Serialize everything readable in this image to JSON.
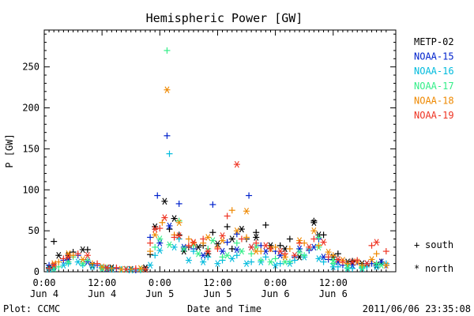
{
  "chart_data": {
    "type": "scatter",
    "title": "Hemispheric Power [GW]",
    "xlabel": "Date and Time",
    "ylabel": "P [GW]",
    "x_unit": "hours since Jun 4 00:00",
    "xlim": [
      0,
      73
    ],
    "ylim": [
      0,
      295
    ],
    "yticks": [
      0,
      50,
      100,
      150,
      200,
      250
    ],
    "xticks": [
      {
        "x": 0,
        "line1": "0:00",
        "line2": "Jun 4"
      },
      {
        "x": 12,
        "line1": "12:00",
        "line2": "Jun 4"
      },
      {
        "x": 24,
        "line1": "0:00",
        "line2": "Jun 5"
      },
      {
        "x": 36,
        "line1": "12:00",
        "line2": "Jun 5"
      },
      {
        "x": 48,
        "line1": "0:00",
        "line2": "Jun 6"
      },
      {
        "x": 60,
        "line1": "12:00",
        "line2": "Jun 6"
      }
    ],
    "grid": false,
    "legend_position": "right",
    "series": [
      {
        "name": "METP-02",
        "color": "#000000",
        "south": [
          [
            2,
            37
          ],
          [
            6,
            24
          ],
          [
            9,
            27
          ],
          [
            22,
            21
          ],
          [
            26,
            52
          ],
          [
            28,
            45
          ],
          [
            30,
            30
          ],
          [
            33,
            32
          ],
          [
            35,
            48
          ],
          [
            38,
            55
          ],
          [
            39,
            28
          ],
          [
            42,
            40
          ],
          [
            44,
            48
          ],
          [
            46,
            57
          ],
          [
            49,
            32
          ],
          [
            51,
            40
          ],
          [
            56,
            62
          ],
          [
            58,
            45
          ],
          [
            61,
            22
          ],
          [
            64,
            13
          ],
          [
            67,
            8
          ],
          [
            70,
            12
          ]
        ],
        "north": [
          [
            1,
            5
          ],
          [
            3,
            20
          ],
          [
            5,
            20
          ],
          [
            8,
            27
          ],
          [
            10,
            8
          ],
          [
            14,
            5
          ],
          [
            18,
            3
          ],
          [
            21,
            5
          ],
          [
            23,
            55
          ],
          [
            25,
            86
          ],
          [
            27,
            65
          ],
          [
            29,
            25
          ],
          [
            32,
            30
          ],
          [
            34,
            22
          ],
          [
            36,
            34
          ],
          [
            39,
            40
          ],
          [
            41,
            52
          ],
          [
            44,
            42
          ],
          [
            47,
            32
          ],
          [
            50,
            28
          ],
          [
            53,
            18
          ],
          [
            56,
            60
          ],
          [
            57,
            45
          ],
          [
            60,
            18
          ],
          [
            63,
            12
          ],
          [
            66,
            10
          ],
          [
            69,
            8
          ]
        ]
      },
      {
        "name": "NOAA-15",
        "color": "#0022cc",
        "south": [
          [
            1,
            8
          ],
          [
            4,
            14
          ],
          [
            7,
            20
          ],
          [
            11,
            8
          ],
          [
            15,
            4
          ],
          [
            19,
            2
          ],
          [
            22,
            42
          ],
          [
            23.5,
            93
          ],
          [
            25.5,
            166
          ],
          [
            28,
            83
          ],
          [
            31,
            28
          ],
          [
            35,
            82
          ],
          [
            38,
            36
          ],
          [
            40,
            46
          ],
          [
            42.5,
            93
          ],
          [
            45,
            32
          ],
          [
            48,
            25
          ],
          [
            52,
            18
          ],
          [
            55,
            26
          ],
          [
            57,
            40
          ],
          [
            59,
            15
          ],
          [
            62,
            8
          ],
          [
            65,
            12
          ],
          [
            68,
            10
          ],
          [
            71,
            8
          ]
        ],
        "north": [
          [
            2,
            6
          ],
          [
            5,
            15
          ],
          [
            9,
            12
          ],
          [
            13,
            4
          ],
          [
            17,
            3
          ],
          [
            21,
            3
          ],
          [
            24,
            35
          ],
          [
            26,
            56
          ],
          [
            29,
            30
          ],
          [
            33,
            20
          ],
          [
            37,
            25
          ],
          [
            40,
            27
          ],
          [
            43,
            30
          ],
          [
            46,
            25
          ],
          [
            49,
            20
          ],
          [
            53,
            28
          ],
          [
            56,
            30
          ],
          [
            58,
            18
          ],
          [
            61,
            12
          ],
          [
            64,
            8
          ],
          [
            67,
            10
          ],
          [
            70,
            12
          ]
        ]
      },
      {
        "name": "NOAA-16",
        "color": "#00bbdd",
        "south": [
          [
            2,
            4
          ],
          [
            5,
            10
          ],
          [
            8,
            8
          ],
          [
            12,
            5
          ],
          [
            16,
            3
          ],
          [
            20,
            2
          ],
          [
            23,
            20
          ],
          [
            26,
            144
          ],
          [
            28,
            40
          ],
          [
            31,
            25
          ],
          [
            34,
            18
          ],
          [
            37,
            14
          ],
          [
            40,
            20
          ],
          [
            43,
            12
          ],
          [
            46,
            18
          ],
          [
            49,
            10
          ],
          [
            52,
            14
          ],
          [
            55,
            28
          ],
          [
            58,
            12
          ],
          [
            61,
            6
          ],
          [
            64,
            4
          ],
          [
            67,
            6
          ],
          [
            71,
            10
          ]
        ],
        "north": [
          [
            1,
            3
          ],
          [
            4,
            8
          ],
          [
            7,
            12
          ],
          [
            10,
            6
          ],
          [
            14,
            3
          ],
          [
            18,
            2
          ],
          [
            22,
            8
          ],
          [
            24,
            26
          ],
          [
            27,
            30
          ],
          [
            30,
            14
          ],
          [
            33,
            12
          ],
          [
            36,
            10
          ],
          [
            39,
            16
          ],
          [
            42,
            10
          ],
          [
            45,
            12
          ],
          [
            48,
            8
          ],
          [
            51,
            10
          ],
          [
            54,
            18
          ],
          [
            57,
            16
          ],
          [
            60,
            6
          ],
          [
            63,
            4
          ],
          [
            66,
            4
          ],
          [
            69,
            6
          ]
        ]
      },
      {
        "name": "NOAA-17",
        "color": "#33ee88",
        "south": [
          [
            3,
            6
          ],
          [
            6,
            18
          ],
          [
            9,
            14
          ],
          [
            13,
            5
          ],
          [
            17,
            3
          ],
          [
            20,
            3
          ],
          [
            23,
            30
          ],
          [
            25.5,
            270
          ],
          [
            28,
            62
          ],
          [
            31,
            32
          ],
          [
            34,
            28
          ],
          [
            37,
            18
          ],
          [
            40,
            35
          ],
          [
            43,
            22
          ],
          [
            45,
            14
          ],
          [
            48,
            16
          ],
          [
            51,
            12
          ],
          [
            54,
            20
          ],
          [
            57,
            42
          ],
          [
            60,
            10
          ],
          [
            63,
            8
          ],
          [
            66,
            6
          ],
          [
            69,
            10
          ]
        ],
        "north": [
          [
            2,
            4
          ],
          [
            5,
            12
          ],
          [
            8,
            10
          ],
          [
            12,
            4
          ],
          [
            16,
            3
          ],
          [
            21,
            3
          ],
          [
            24,
            40
          ],
          [
            26,
            33
          ],
          [
            29,
            28
          ],
          [
            32,
            22
          ],
          [
            35,
            38
          ],
          [
            38,
            20
          ],
          [
            41,
            25
          ],
          [
            44,
            30
          ],
          [
            47,
            12
          ],
          [
            50,
            12
          ],
          [
            53,
            24
          ],
          [
            57,
            30
          ],
          [
            60,
            14
          ],
          [
            63,
            5
          ],
          [
            66,
            5
          ],
          [
            70,
            8
          ]
        ]
      },
      {
        "name": "NOAA-18",
        "color": "#ee8800",
        "south": [
          [
            3,
            12
          ],
          [
            6,
            20
          ],
          [
            10,
            10
          ],
          [
            14,
            4
          ],
          [
            18,
            3
          ],
          [
            22,
            25
          ],
          [
            24.5,
            60
          ],
          [
            27,
            45
          ],
          [
            30,
            40
          ],
          [
            33,
            35
          ],
          [
            36,
            30
          ],
          [
            39,
            75
          ],
          [
            42,
            42
          ],
          [
            45,
            25
          ],
          [
            48,
            30
          ],
          [
            51,
            28
          ],
          [
            54,
            35
          ],
          [
            57,
            32
          ],
          [
            60,
            20
          ],
          [
            63,
            10
          ],
          [
            66,
            8
          ],
          [
            69,
            22
          ]
        ],
        "north": [
          [
            2,
            10
          ],
          [
            5,
            22
          ],
          [
            8,
            15
          ],
          [
            12,
            6
          ],
          [
            16,
            3
          ],
          [
            20,
            4
          ],
          [
            23,
            45
          ],
          [
            25.5,
            222
          ],
          [
            28,
            60
          ],
          [
            31,
            35
          ],
          [
            34,
            42
          ],
          [
            37,
            38
          ],
          [
            40,
            50
          ],
          [
            42,
            74
          ],
          [
            44,
            25
          ],
          [
            47,
            28
          ],
          [
            50,
            18
          ],
          [
            53,
            38
          ],
          [
            56,
            50
          ],
          [
            59,
            24
          ],
          [
            62,
            14
          ],
          [
            65,
            12
          ],
          [
            68,
            15
          ],
          [
            71,
            8
          ]
        ]
      },
      {
        "name": "NOAA-19",
        "color": "#ee3322",
        "south": [
          [
            1,
            4
          ],
          [
            4,
            16
          ],
          [
            7,
            22
          ],
          [
            11,
            10
          ],
          [
            15,
            5
          ],
          [
            19,
            4
          ],
          [
            22,
            35
          ],
          [
            24,
            53
          ],
          [
            27,
            42
          ],
          [
            30,
            32
          ],
          [
            33,
            40
          ],
          [
            36,
            28
          ],
          [
            38,
            68
          ],
          [
            41,
            40
          ],
          [
            44,
            35
          ],
          [
            47,
            28
          ],
          [
            50,
            22
          ],
          [
            53,
            35
          ],
          [
            56,
            40
          ],
          [
            59,
            18
          ],
          [
            62,
            12
          ],
          [
            65,
            14
          ],
          [
            68,
            32
          ],
          [
            71,
            25
          ]
        ],
        "north": [
          [
            2,
            8
          ],
          [
            5,
            18
          ],
          [
            9,
            20
          ],
          [
            13,
            5
          ],
          [
            17,
            3
          ],
          [
            21,
            3
          ],
          [
            23,
            52
          ],
          [
            25,
            66
          ],
          [
            28,
            44
          ],
          [
            31,
            36
          ],
          [
            34,
            25
          ],
          [
            37,
            44
          ],
          [
            40,
            131
          ],
          [
            43,
            30
          ],
          [
            46,
            32
          ],
          [
            49,
            25
          ],
          [
            52,
            20
          ],
          [
            55,
            30
          ],
          [
            58,
            36
          ],
          [
            61,
            15
          ],
          [
            64,
            12
          ],
          [
            67,
            10
          ],
          [
            69,
            36
          ]
        ]
      }
    ]
  },
  "legend_symbols": {
    "south_label": "south",
    "north_label": "north",
    "south_glyph": "+",
    "north_glyph": "*"
  },
  "footer": {
    "left": "Plot: CCMC",
    "right": "2011/06/06 23:35:08"
  }
}
